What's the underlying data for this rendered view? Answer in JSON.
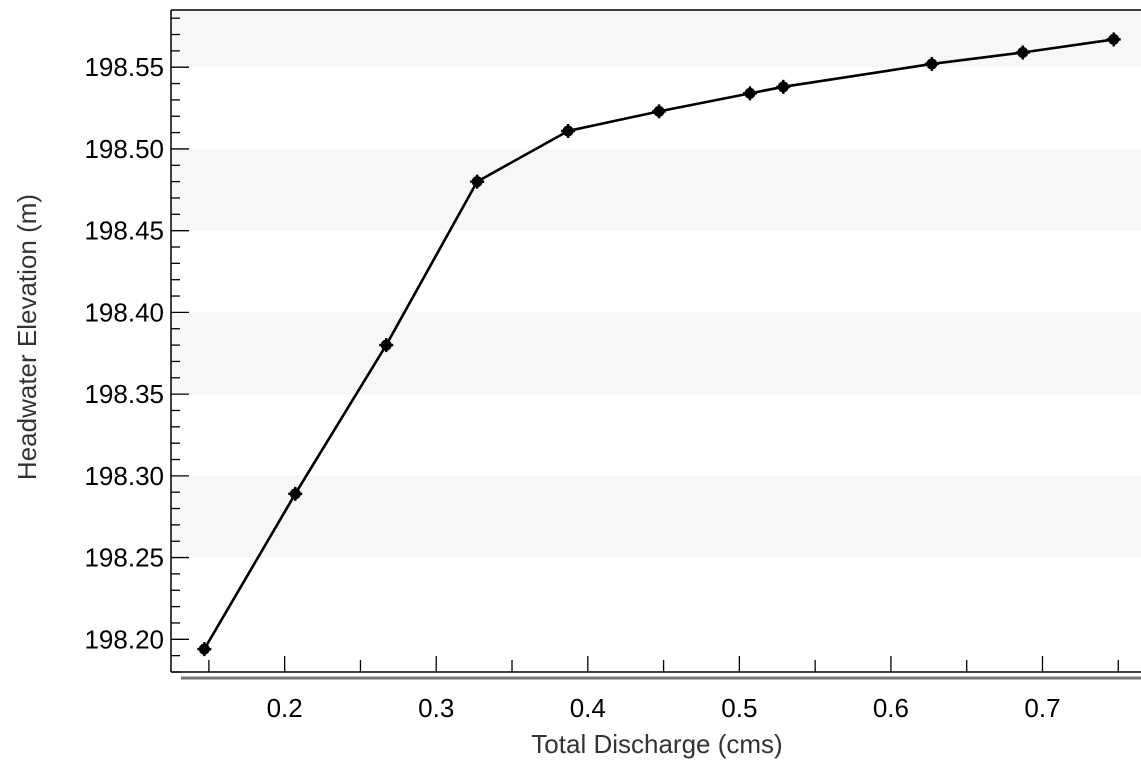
{
  "chart_data": {
    "type": "line",
    "title": "",
    "xlabel": "Total Discharge (cms)",
    "ylabel": "Headwater Elevation (m)",
    "xlim": [
      0.125,
      0.765
    ],
    "ylim": [
      198.18,
      198.585
    ],
    "x_ticks": [
      0.2,
      0.3,
      0.4,
      0.5,
      0.6,
      0.7
    ],
    "x_tick_labels": [
      "0.2",
      "0.3",
      "0.4",
      "0.5",
      "0.6",
      "0.7"
    ],
    "y_ticks": [
      198.2,
      198.25,
      198.3,
      198.35,
      198.4,
      198.45,
      198.5,
      198.55
    ],
    "y_tick_labels": [
      "198.20",
      "198.25",
      "198.30",
      "198.35",
      "198.40",
      "198.45",
      "198.50",
      "198.55"
    ],
    "grid": false,
    "alternating_bands": true,
    "series": [
      {
        "color": "#000000",
        "marker": "filled-circle",
        "x": [
          0.147,
          0.207,
          0.267,
          0.327,
          0.387,
          0.447,
          0.507,
          0.529,
          0.627,
          0.687,
          0.747
        ],
        "y": [
          198.194,
          198.289,
          198.38,
          198.48,
          198.511,
          198.523,
          198.534,
          198.538,
          198.552,
          198.559,
          198.567
        ]
      }
    ]
  }
}
